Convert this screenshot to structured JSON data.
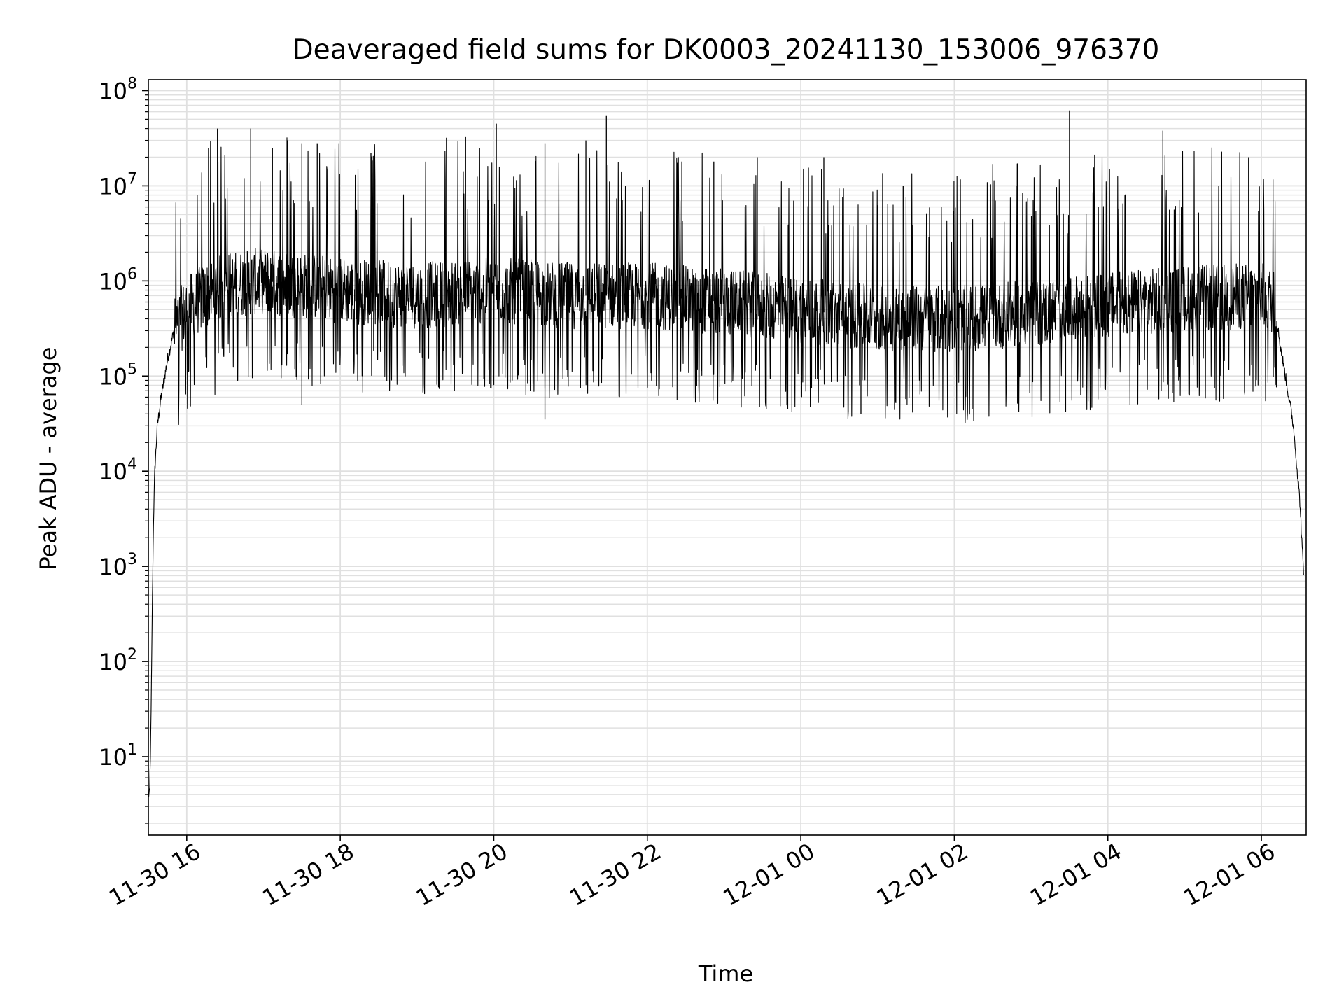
{
  "chart_data": {
    "type": "line",
    "title": "Deaveraged field sums for DK0003_20241130_153006_976370",
    "xlabel": "Time",
    "ylabel": "Peak ADU - average",
    "yscale": "log",
    "ylim": [
      1.5,
      130000000
    ],
    "xlim": [
      "2024-11-30 15:30",
      "2024-12-01 06:35"
    ],
    "grid": true,
    "line_color": "#000000",
    "grid_color": "#e0e0e0",
    "x_ticks": [
      {
        "value": "2024-11-30 16:00",
        "label": "11-30 16"
      },
      {
        "value": "2024-11-30 18:00",
        "label": "11-30 18"
      },
      {
        "value": "2024-11-30 20:00",
        "label": "11-30 20"
      },
      {
        "value": "2024-11-30 22:00",
        "label": "11-30 22"
      },
      {
        "value": "2024-12-01 00:00",
        "label": "12-01 00"
      },
      {
        "value": "2024-12-01 02:00",
        "label": "12-01 02"
      },
      {
        "value": "2024-12-01 04:00",
        "label": "12-01 04"
      },
      {
        "value": "2024-12-01 06:00",
        "label": "12-01 06"
      }
    ],
    "y_ticks": [
      {
        "value": 10,
        "base": "10",
        "exp": "1"
      },
      {
        "value": 100,
        "base": "10",
        "exp": "2"
      },
      {
        "value": 1000,
        "base": "10",
        "exp": "3"
      },
      {
        "value": 10000,
        "base": "10",
        "exp": "4"
      },
      {
        "value": 100000,
        "base": "10",
        "exp": "5"
      },
      {
        "value": 1000000,
        "base": "10",
        "exp": "6"
      },
      {
        "value": 10000000,
        "base": "10",
        "exp": "7"
      },
      {
        "value": 100000000,
        "base": "10",
        "exp": "8"
      }
    ],
    "series": [
      {
        "points": [
          [
            "2024-11-30 15:30",
            4
          ],
          [
            "2024-11-30 15:31",
            4
          ],
          [
            "2024-11-30 15:32",
            20
          ],
          [
            "2024-11-30 15:33",
            300
          ],
          [
            "2024-11-30 15:34",
            3000
          ],
          [
            "2024-11-30 15:35",
            10000
          ],
          [
            "2024-11-30 15:37",
            30000
          ],
          [
            "2024-11-30 15:40",
            60000
          ],
          [
            "2024-11-30 15:45",
            150000
          ],
          [
            "2024-11-30 15:50",
            300000
          ],
          [
            "2024-11-30 16:00",
            500000
          ],
          [
            "2024-11-30 16:15",
            700000
          ],
          [
            "2024-11-30 16:30",
            900000
          ],
          [
            "2024-11-30 17:00",
            1000000
          ],
          [
            "2024-11-30 17:30",
            900000
          ],
          [
            "2024-11-30 18:00",
            800000
          ],
          [
            "2024-11-30 19:00",
            700000
          ],
          [
            "2024-11-30 20:00",
            800000
          ],
          [
            "2024-11-30 21:00",
            700000
          ],
          [
            "2024-11-30 22:00",
            700000
          ],
          [
            "2024-11-30 23:00",
            600000
          ],
          [
            "2024-12-01 00:00",
            500000
          ],
          [
            "2024-12-01 01:00",
            400000
          ],
          [
            "2024-12-01 02:00",
            400000
          ],
          [
            "2024-12-01 03:00",
            450000
          ],
          [
            "2024-12-01 04:00",
            550000
          ],
          [
            "2024-12-01 05:00",
            650000
          ],
          [
            "2024-12-01 06:00",
            700000
          ],
          [
            "2024-12-01 06:10",
            600000
          ],
          [
            "2024-12-01 06:15",
            200000
          ],
          [
            "2024-12-01 06:20",
            80000
          ],
          [
            "2024-12-01 06:25",
            30000
          ],
          [
            "2024-12-01 06:30",
            5000
          ],
          [
            "2024-12-01 06:33",
            800
          ]
        ],
        "spikes": [
          [
            "2024-11-30 16:17",
            25000000
          ],
          [
            "2024-11-30 16:24",
            40000000
          ],
          [
            "2024-11-30 16:50",
            40000000
          ],
          [
            "2024-11-30 17:07",
            25000000
          ],
          [
            "2024-11-30 17:30",
            28000000
          ],
          [
            "2024-11-30 17:42",
            28000000
          ],
          [
            "2024-11-30 18:24",
            22000000
          ],
          [
            "2024-11-30 19:23",
            32000000
          ],
          [
            "2024-11-30 19:38",
            33000000
          ],
          [
            "2024-11-30 20:02",
            45000000
          ],
          [
            "2024-11-30 20:40",
            28000000
          ],
          [
            "2024-11-30 21:12",
            30000000
          ],
          [
            "2024-11-30 21:28",
            55000000
          ],
          [
            "2024-11-30 22:27",
            18000000
          ],
          [
            "2024-11-30 22:52",
            18000000
          ],
          [
            "2024-11-30 23:26",
            20000000
          ],
          [
            "2024-12-01 00:18",
            20000000
          ],
          [
            "2024-12-01 01:20",
            10000000
          ],
          [
            "2024-12-01 03:30",
            62000000
          ],
          [
            "2024-12-01 04:43",
            38000000
          ],
          [
            "2024-12-01 05:50",
            20000000
          ]
        ],
        "dips": [
          [
            "2024-11-30 20:40",
            35000
          ],
          [
            "2024-11-30 17:30",
            50000
          ],
          [
            "2024-11-30 23:33",
            45000
          ],
          [
            "2024-12-01 00:47",
            40000
          ],
          [
            "2024-12-01 02:14",
            45000
          ],
          [
            "2024-12-01 03:27",
            42000
          ]
        ]
      }
    ]
  }
}
